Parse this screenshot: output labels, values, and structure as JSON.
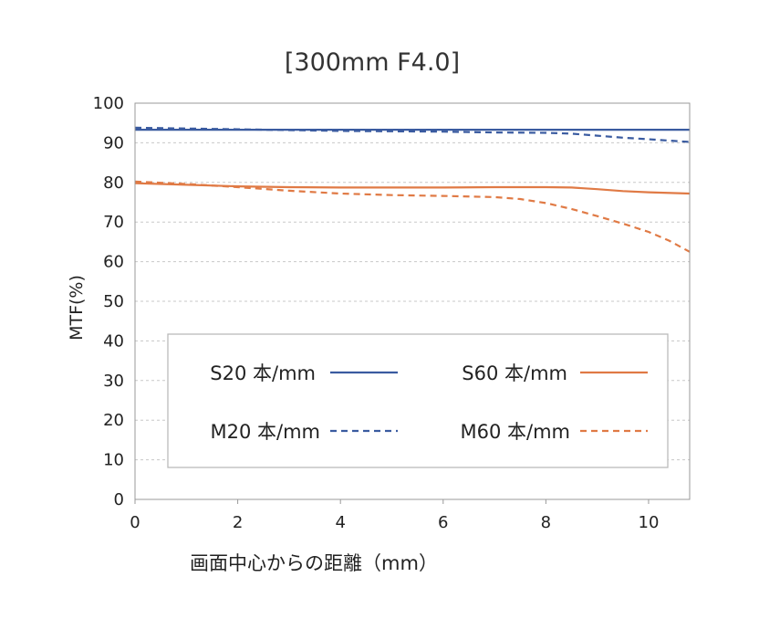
{
  "chart_data": {
    "type": "line",
    "title": "[300mm F4.0]",
    "xlabel": "画面中心からの距離（mm）",
    "ylabel": "MTF(%)",
    "xlim": [
      0,
      10.8
    ],
    "ylim": [
      0,
      100
    ],
    "xticks": [
      0,
      2,
      4,
      6,
      8,
      10
    ],
    "yticks": [
      0,
      10,
      20,
      30,
      40,
      50,
      60,
      70,
      80,
      90,
      100
    ],
    "grid": "horizontal-dashed",
    "legend_position": "center-bottom",
    "series": [
      {
        "name": "S20 本/mm",
        "color": "#3a5ba0",
        "style": "solid",
        "x": [
          0,
          2,
          4,
          6,
          8,
          9,
          10,
          10.8
        ],
        "y": [
          93.3,
          93.3,
          93.3,
          93.3,
          93.3,
          93.3,
          93.3,
          93.3
        ]
      },
      {
        "name": "M20 本/mm",
        "color": "#3a5ba0",
        "style": "dashed",
        "x": [
          0,
          2,
          4,
          6,
          7,
          8,
          8.5,
          9,
          9.5,
          10,
          10.8
        ],
        "y": [
          93.8,
          93.4,
          93.0,
          92.8,
          92.6,
          92.5,
          92.3,
          91.8,
          91.3,
          90.9,
          90.2
        ]
      },
      {
        "name": "S60 本/mm",
        "color": "#e07a45",
        "style": "solid",
        "x": [
          0,
          1,
          2,
          3,
          4,
          5,
          6,
          7,
          8,
          8.5,
          9,
          9.5,
          10,
          10.8
        ],
        "y": [
          79.8,
          79.4,
          79.0,
          78.8,
          78.7,
          78.7,
          78.7,
          78.8,
          78.8,
          78.7,
          78.3,
          77.8,
          77.5,
          77.2
        ]
      },
      {
        "name": "M60 本/mm",
        "color": "#e07a45",
        "style": "dashed",
        "x": [
          0,
          1,
          2,
          3,
          4,
          5,
          6,
          7,
          7.5,
          8,
          8.5,
          9,
          9.5,
          10,
          10.4,
          10.8
        ],
        "y": [
          80.2,
          79.6,
          78.8,
          77.9,
          77.2,
          76.8,
          76.6,
          76.3,
          75.8,
          74.8,
          73.3,
          71.5,
          69.6,
          67.5,
          65.3,
          62.5
        ]
      }
    ]
  }
}
